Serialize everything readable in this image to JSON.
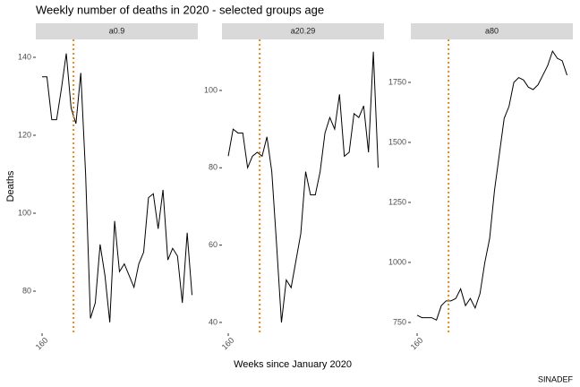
{
  "title": "Weekly number of deaths in 2020 - selected groups age",
  "xlabel": "Weeks since January 2020",
  "ylabel": "Deaths",
  "caption": "SINADEF",
  "chart_data": [
    {
      "type": "line",
      "panel_label": "a0.9",
      "color": "#000000",
      "vline": 166.5,
      "vline_color": "#e08a1e",
      "x": [
        160,
        161,
        162,
        163,
        164,
        165,
        166,
        167,
        168,
        169,
        170,
        171,
        172,
        173,
        174,
        175,
        176,
        177,
        178,
        179,
        180,
        181,
        182,
        183,
        184,
        185,
        186,
        187,
        188,
        189,
        190,
        191
      ],
      "values": [
        135,
        135,
        124,
        124,
        132,
        141,
        127,
        123,
        136,
        110,
        73,
        77,
        92,
        84,
        72,
        98,
        85,
        87,
        84,
        81,
        87,
        90,
        104,
        105,
        96,
        106,
        88,
        91,
        89,
        77,
        95,
        79
      ],
      "xlim": [
        158.7,
        192.2
      ],
      "xticks": [
        160
      ],
      "ylim": [
        69.2,
        144.6
      ],
      "yticks": [
        80,
        100,
        120,
        140
      ]
    },
    {
      "type": "line",
      "panel_label": "a20.29",
      "color": "#000000",
      "vline": 166.5,
      "vline_color": "#e08a1e",
      "x": [
        160,
        161,
        162,
        163,
        164,
        165,
        166,
        167,
        168,
        169,
        170,
        171,
        172,
        173,
        174,
        175,
        176,
        177,
        178,
        179,
        180,
        181,
        182,
        183,
        184,
        185,
        186,
        187,
        188,
        189,
        190,
        191
      ],
      "values": [
        83,
        90,
        89,
        89,
        80,
        83,
        84,
        83,
        88,
        79,
        60,
        40,
        51,
        49,
        56,
        63,
        79,
        73,
        73,
        79,
        89,
        93,
        90,
        99,
        83,
        84,
        94,
        93,
        96,
        84,
        110,
        80
      ],
      "xlim": [
        158.7,
        192.2
      ],
      "xticks": [
        160
      ],
      "ylim": [
        37.2,
        113.2
      ],
      "yticks": [
        40,
        60,
        80,
        100
      ]
    },
    {
      "type": "line",
      "panel_label": "a80",
      "color": "#000000",
      "vline": 166.5,
      "vline_color": "#e08a1e",
      "x": [
        160,
        161,
        162,
        163,
        164,
        165,
        166,
        167,
        168,
        169,
        170,
        171,
        172,
        173,
        174,
        175,
        176,
        177,
        178,
        179,
        180,
        181,
        182,
        183,
        184,
        185,
        186,
        187,
        188,
        189,
        190,
        191
      ],
      "values": [
        780,
        770,
        770,
        770,
        760,
        820,
        840,
        840,
        850,
        890,
        820,
        850,
        810,
        870,
        1000,
        1100,
        1300,
        1450,
        1600,
        1650,
        1750,
        1770,
        1760,
        1730,
        1720,
        1740,
        1780,
        1820,
        1880,
        1850,
        1840,
        1780
      ],
      "xlim": [
        158.7,
        192.2
      ],
      "xticks": [
        160
      ],
      "ylim": [
        705,
        1929
      ],
      "yticks": [
        750,
        1000,
        1250,
        1500,
        1750
      ]
    }
  ]
}
